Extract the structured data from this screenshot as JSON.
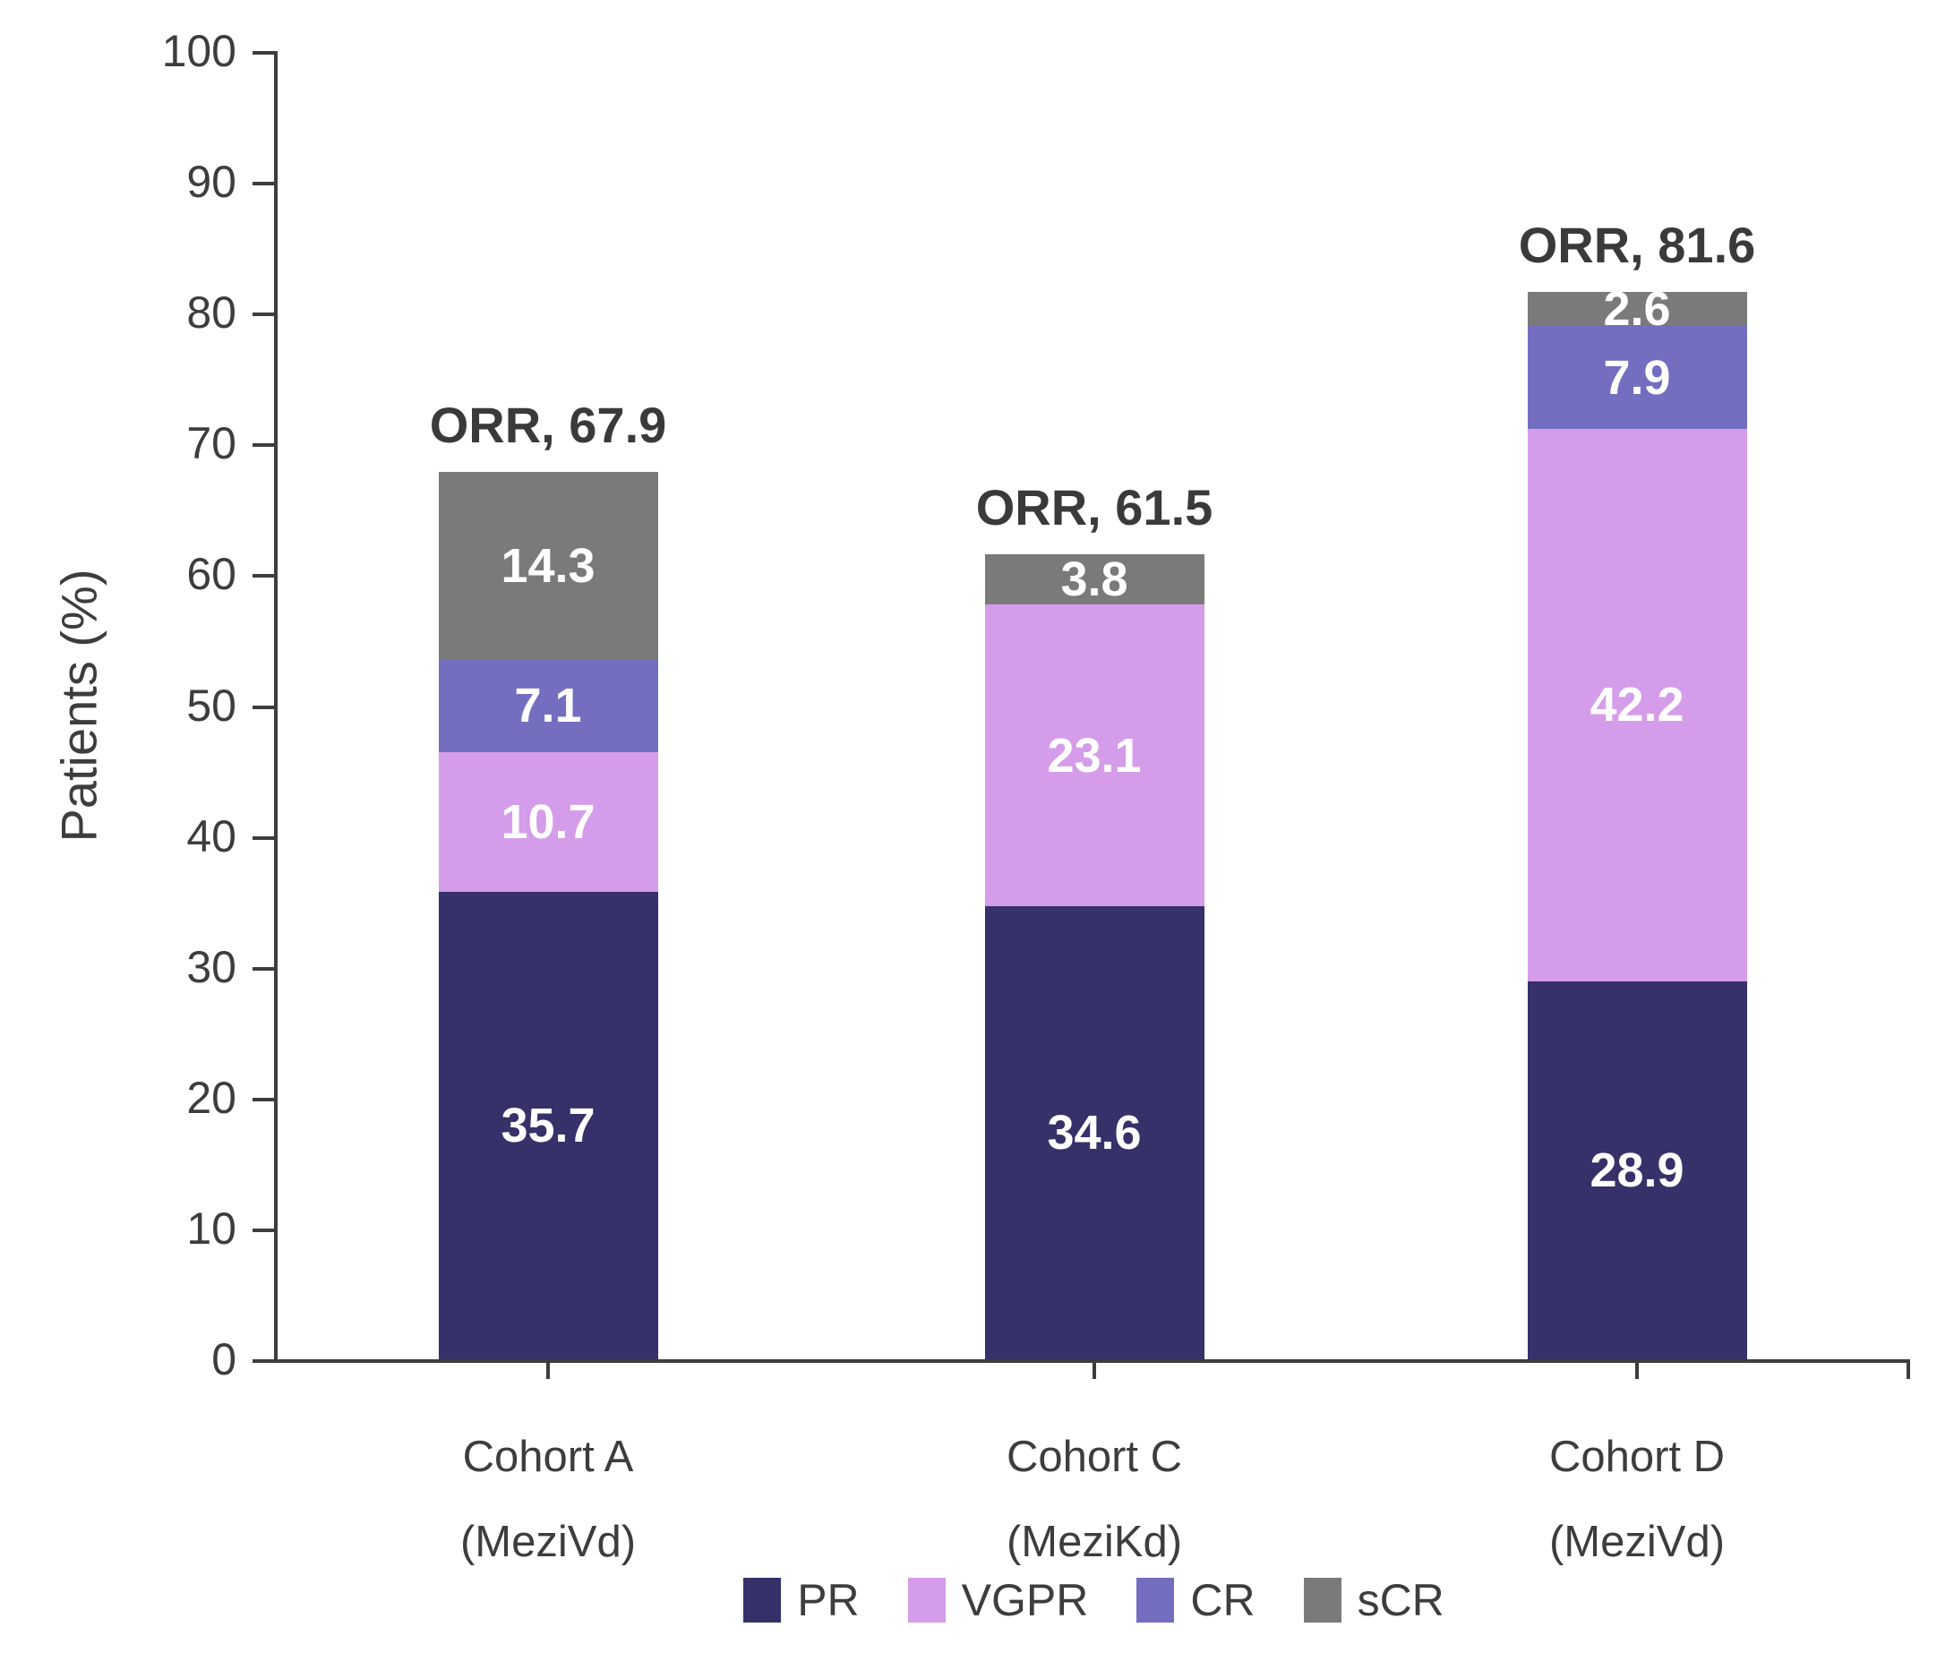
{
  "chart_data": {
    "type": "bar",
    "stacked": true,
    "title": "",
    "ylabel": "Patients (%)",
    "ylim": [
      0,
      100
    ],
    "yticks": [
      0,
      10,
      20,
      30,
      40,
      50,
      60,
      70,
      80,
      90,
      100
    ],
    "grid": false,
    "legend_position": "bottom",
    "categories": [
      "Cohort A",
      "Cohort C",
      "Cohort D"
    ],
    "category_sublabels": [
      "(MeziVd)",
      "(MeziKd)",
      "(MeziVd)"
    ],
    "series": [
      {
        "name": "PR",
        "color": "#363169",
        "values": [
          35.7,
          34.6,
          28.9
        ]
      },
      {
        "name": "VGPR",
        "color": "#d59de9",
        "values": [
          10.7,
          23.1,
          42.2
        ]
      },
      {
        "name": "CR",
        "color": "#746ec0",
        "values": [
          7.1,
          0,
          7.9
        ]
      },
      {
        "name": "sCR",
        "color": "#7a7a7a",
        "values": [
          14.3,
          3.8,
          2.6
        ]
      }
    ],
    "bar_total_labels": [
      "ORR, 67.9",
      "ORR, 61.5",
      "ORR, 81.6"
    ],
    "totals": [
      67.9,
      61.5,
      81.6
    ],
    "value_label_color": "#ffffff",
    "axis_color": "#3d3d3d",
    "text_color": "#3d3d3d"
  }
}
